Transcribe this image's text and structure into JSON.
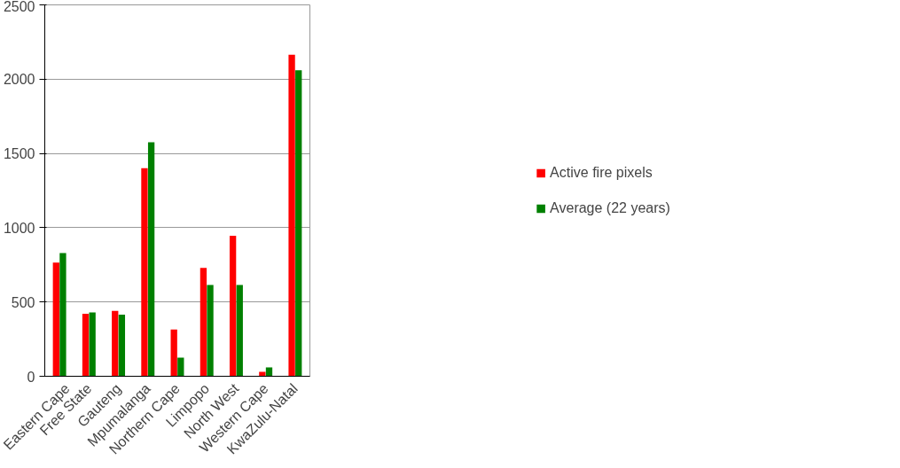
{
  "chart_data": {
    "type": "bar",
    "categories": [
      "Eastern Cape",
      "Free State",
      "Gauteng",
      "Mpumalanga",
      "Northern Cape",
      "Limpopo",
      "North West",
      "Western Cape",
      "KwaZulu-Natal"
    ],
    "series": [
      {
        "name": "Active fire pixels",
        "color": "#ff0000",
        "values": [
          765,
          420,
          440,
          1400,
          315,
          730,
          945,
          30,
          2165
        ]
      },
      {
        "name": "Average (22 years)",
        "color": "#008000",
        "values": [
          830,
          430,
          415,
          1575,
          125,
          615,
          615,
          60,
          2060
        ]
      }
    ],
    "ylim": [
      0,
      2500
    ],
    "yticks": [
      0,
      500,
      1000,
      1500,
      2000,
      2500
    ],
    "grid": "y",
    "legend": "right"
  }
}
